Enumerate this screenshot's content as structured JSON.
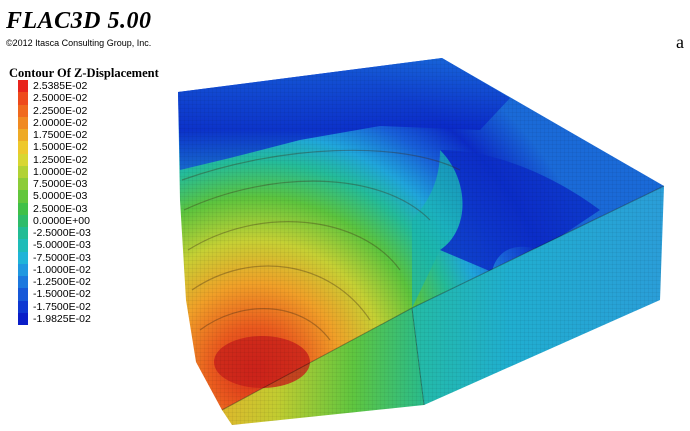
{
  "header": {
    "title": "FLAC3D 5.00",
    "copyright": "©2012 Itasca Consulting Group, Inc."
  },
  "legend": {
    "title": "Contour Of Z-Displacement",
    "items": [
      {
        "label": "2.5385E-02",
        "color": "#e8241c"
      },
      {
        "label": "2.5000E-02",
        "color": "#ee4a1c"
      },
      {
        "label": "2.2500E-02",
        "color": "#f06a1e"
      },
      {
        "label": "2.0000E-02",
        "color": "#f08a22"
      },
      {
        "label": "1.7500E-02",
        "color": "#eeaa26"
      },
      {
        "label": "1.5000E-02",
        "color": "#eec82c"
      },
      {
        "label": "1.2500E-02",
        "color": "#d8d632"
      },
      {
        "label": "1.0000E-02",
        "color": "#b2d234"
      },
      {
        "label": "7.5000E-03",
        "color": "#8ccc38"
      },
      {
        "label": "5.0000E-03",
        "color": "#62c63c"
      },
      {
        "label": "2.5000E-03",
        "color": "#40c048"
      },
      {
        "label": "0.0000E+00",
        "color": "#2ebc6a"
      },
      {
        "label": "-2.5000E-03",
        "color": "#22bc94"
      },
      {
        "label": "-5.0000E-03",
        "color": "#1ebcb8"
      },
      {
        "label": "-7.5000E-03",
        "color": "#20b4d8"
      },
      {
        "label": "-1.0000E-02",
        "color": "#2098e0"
      },
      {
        "label": "-1.2500E-02",
        "color": "#1c78de"
      },
      {
        "label": "-1.5000E-02",
        "color": "#1658d8"
      },
      {
        "label": "-1.7500E-02",
        "color": "#0e38d2"
      },
      {
        "label": "-1.9825E-02",
        "color": "#0a1ec8"
      }
    ]
  },
  "figure_label": "a"
}
